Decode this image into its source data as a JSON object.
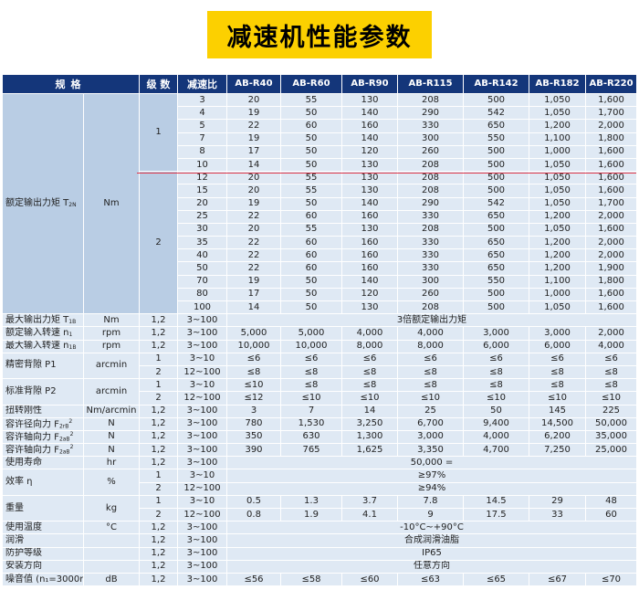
{
  "title": "减速机性能参数",
  "header": {
    "spec": "规格",
    "stage": "级 数",
    "ratio": "减速比",
    "models": [
      "AB-R40",
      "AB-R60",
      "AB-R90",
      "AB-R115",
      "AB-R142",
      "AB-R182",
      "AB-R220"
    ]
  },
  "torque": {
    "label": "额定输出力矩 T",
    "label_sub": "2N",
    "unit": "Nm",
    "stage1_label": "1",
    "stage2_label": "2",
    "stage1_rows": [
      [
        "3",
        "20",
        "55",
        "130",
        "208",
        "500",
        "1,050",
        "1,600"
      ],
      [
        "4",
        "19",
        "50",
        "140",
        "290",
        "542",
        "1,050",
        "1,700"
      ],
      [
        "5",
        "22",
        "60",
        "160",
        "330",
        "650",
        "1,200",
        "2,000"
      ],
      [
        "7",
        "19",
        "50",
        "140",
        "300",
        "550",
        "1,100",
        "1,800"
      ],
      [
        "8",
        "17",
        "50",
        "120",
        "260",
        "500",
        "1,000",
        "1,600"
      ],
      [
        "10",
        "14",
        "50",
        "130",
        "208",
        "500",
        "1,050",
        "1,600"
      ]
    ],
    "stage2_rows": [
      [
        "12",
        "20",
        "55",
        "130",
        "208",
        "500",
        "1,050",
        "1,600"
      ],
      [
        "15",
        "20",
        "55",
        "130",
        "208",
        "500",
        "1,050",
        "1,600"
      ],
      [
        "20",
        "19",
        "50",
        "140",
        "290",
        "542",
        "1,050",
        "1,700"
      ],
      [
        "25",
        "22",
        "60",
        "160",
        "330",
        "650",
        "1,200",
        "2,000"
      ],
      [
        "30",
        "20",
        "55",
        "130",
        "208",
        "500",
        "1,050",
        "1,600"
      ],
      [
        "35",
        "22",
        "60",
        "160",
        "330",
        "650",
        "1,200",
        "2,000"
      ],
      [
        "40",
        "22",
        "60",
        "160",
        "330",
        "650",
        "1,200",
        "2,000"
      ],
      [
        "50",
        "22",
        "60",
        "160",
        "330",
        "650",
        "1,200",
        "1,900"
      ],
      [
        "70",
        "19",
        "50",
        "140",
        "300",
        "550",
        "1,100",
        "1,800"
      ],
      [
        "80",
        "17",
        "50",
        "120",
        "260",
        "500",
        "1,000",
        "1,600"
      ],
      [
        "100",
        "14",
        "50",
        "130",
        "208",
        "500",
        "1,050",
        "1,600"
      ]
    ]
  },
  "max_torque": {
    "label": "最大输出力矩 T",
    "sub": "1B",
    "unit": "Nm",
    "stage": "1,2",
    "ratio": "3~100",
    "value": "3倍额定输出力矩"
  },
  "rated_speed": {
    "label": "额定输入转速 n",
    "sub": "1",
    "unit": "rpm",
    "stage": "1,2",
    "ratio": "3~100",
    "values": [
      "5,000",
      "5,000",
      "4,000",
      "4,000",
      "3,000",
      "3,000",
      "2,000"
    ]
  },
  "max_speed": {
    "label": "最大输入转速 n",
    "sub": "1B",
    "unit": "rpm",
    "stage": "1,2",
    "ratio": "3~100",
    "values": [
      "10,000",
      "10,000",
      "8,000",
      "8,000",
      "6,000",
      "6,000",
      "4,000"
    ]
  },
  "backlash_p1": {
    "label": "精密背隙 P1",
    "unit": "arcmin",
    "rows": [
      {
        "stage": "1",
        "ratio": "3~10",
        "values": [
          "≤6",
          "≤6",
          "≤6",
          "≤6",
          "≤6",
          "≤6",
          "≤6"
        ]
      },
      {
        "stage": "2",
        "ratio": "12~100",
        "values": [
          "≤8",
          "≤8",
          "≤8",
          "≤8",
          "≤8",
          "≤8",
          "≤8"
        ]
      }
    ]
  },
  "backlash_p2": {
    "label": "标准背隙 P2",
    "unit": "arcmin",
    "rows": [
      {
        "stage": "1",
        "ratio": "3~10",
        "values": [
          "≤10",
          "≤8",
          "≤8",
          "≤8",
          "≤8",
          "≤8",
          "≤8"
        ]
      },
      {
        "stage": "2",
        "ratio": "12~100",
        "values": [
          "≤12",
          "≤10",
          "≤10",
          "≤10",
          "≤10",
          "≤10",
          "≤10"
        ]
      }
    ]
  },
  "rigidity": {
    "label": "扭转刚性",
    "unit": "Nm/arcmin",
    "stage": "1,2",
    "ratio": "3~100",
    "values": [
      "3",
      "7",
      "14",
      "25",
      "50",
      "145",
      "225"
    ]
  },
  "radial_force": {
    "label": "容许径向力 F",
    "sub": "2rB",
    "sup": "2",
    "unit": "N",
    "stage": "1,2",
    "ratio": "3~100",
    "values": [
      "780",
      "1,530",
      "3,250",
      "6,700",
      "9,400",
      "14,500",
      "50,000"
    ]
  },
  "axial_force": {
    "label": "容许轴向力 F",
    "sub": "2aB",
    "sup": "2",
    "unit": "N",
    "stage": "1,2",
    "ratio": "3~100",
    "values": [
      "350",
      "630",
      "1,300",
      "3,000",
      "4,000",
      "6,200",
      "35,000"
    ]
  },
  "axial_force2": {
    "label": "容许轴向力 F",
    "sub": "2aB",
    "sup": "2",
    "unit": "N",
    "stage": "1,2",
    "ratio": "3~100",
    "values": [
      "390",
      "765",
      "1,625",
      "3,350",
      "4,700",
      "7,250",
      "25,000"
    ]
  },
  "life": {
    "label": "使用寿命",
    "unit": "hr",
    "stage": "1,2",
    "ratio": "3~100",
    "value": "50,000 ="
  },
  "efficiency": {
    "label": "效率 η",
    "unit": "%",
    "rows": [
      {
        "stage": "1",
        "ratio": "3~10",
        "value": "≥97%"
      },
      {
        "stage": "2",
        "ratio": "12~100",
        "value": "≥94%"
      }
    ]
  },
  "weight": {
    "label": "重量",
    "unit": "kg",
    "rows": [
      {
        "stage": "1",
        "ratio": "3~10",
        "values": [
          "0.5",
          "1.3",
          "3.7",
          "7.8",
          "14.5",
          "29",
          "48"
        ]
      },
      {
        "stage": "2",
        "ratio": "12~100",
        "values": [
          "0.8",
          "1.9",
          "4.1",
          "9",
          "17.5",
          "33",
          "60"
        ]
      }
    ]
  },
  "temperature": {
    "label": "使用温度",
    "unit": "°C",
    "stage": "1,2",
    "ratio": "3~100",
    "value": "-10°C~+90°C"
  },
  "lubrication": {
    "label": "润滑",
    "unit": "",
    "stage": "1,2",
    "ratio": "3~100",
    "value": "合成润滑油脂"
  },
  "protection": {
    "label": "防护等级",
    "unit": "",
    "stage": "1,2",
    "ratio": "3~100",
    "value": "IP65"
  },
  "mounting": {
    "label": "安装方向",
    "unit": "",
    "stage": "1,2",
    "ratio": "3~100",
    "value": "任意方向"
  },
  "noise": {
    "label": "噪音值 (n₁=3000rpm)",
    "unit": "dB",
    "stage": "1,2",
    "ratio": "3~100",
    "values": [
      "≤56",
      "≤58",
      "≤60",
      "≤63",
      "≤65",
      "≤67",
      "≤70"
    ]
  }
}
